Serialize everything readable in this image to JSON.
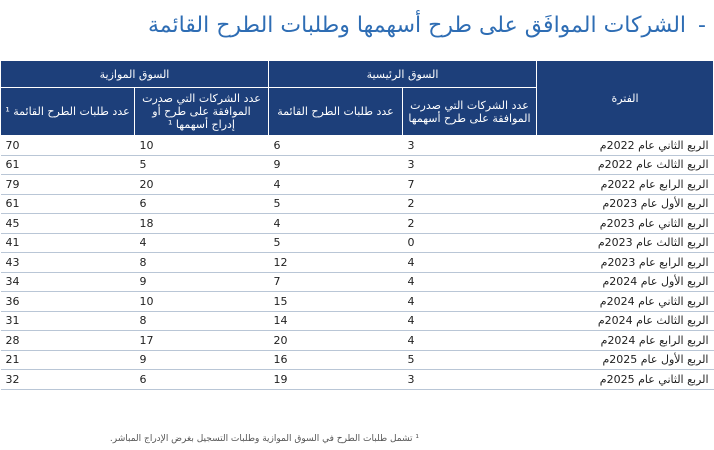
{
  "title": {
    "dash": "-",
    "text": "الشركات الموافَق على طرح أسهمها وطلبات الطرح القائمة"
  },
  "table": {
    "period_header": "الفترة",
    "main_market": {
      "label": "السوق الرئيسية",
      "col_approved": "عدد الشركات التي صدرت الموافقة على طرح أسهمها",
      "col_pending": "عدد طلبات الطرح القائمة"
    },
    "parallel_market": {
      "label": "السوق الموازية",
      "col_approved": "عدد الشركات التي صدرت الموافقة على طرح أو إدراج أسهمها ¹",
      "col_pending": "عدد طلبات الطرح القائمة ¹"
    },
    "rows": [
      {
        "period": "الربع الثاني عام 2022م",
        "main_approved": "3",
        "main_pending": "6",
        "par_approved": "10",
        "par_pending": "70"
      },
      {
        "period": "الربع الثالث عام 2022م",
        "main_approved": "3",
        "main_pending": "9",
        "par_approved": "5",
        "par_pending": "61"
      },
      {
        "period": "الربع الرابع عام 2022م",
        "main_approved": "7",
        "main_pending": "4",
        "par_approved": "20",
        "par_pending": "79"
      },
      {
        "period": "الربع الأول عام 2023م",
        "main_approved": "2",
        "main_pending": "5",
        "par_approved": "6",
        "par_pending": "61"
      },
      {
        "period": "الربع الثاني عام  2023م",
        "main_approved": "2",
        "main_pending": "4",
        "par_approved": "18",
        "par_pending": "45"
      },
      {
        "period": "الربع الثالث عام 2023م",
        "main_approved": "0",
        "main_pending": "5",
        "par_approved": "4",
        "par_pending": "41"
      },
      {
        "period": "الربع الرابع عام 2023م",
        "main_approved": "4",
        "main_pending": "12",
        "par_approved": "8",
        "par_pending": "43"
      },
      {
        "period": "الربع الأول عام 2024م",
        "main_approved": "4",
        "main_pending": "7",
        "par_approved": "9",
        "par_pending": "34"
      },
      {
        "period": "الربع الثاني عام 2024م",
        "main_approved": "4",
        "main_pending": "15",
        "par_approved": "10",
        "par_pending": "36"
      },
      {
        "period": "الربع الثالث عام 2024م",
        "main_approved": "4",
        "main_pending": "14",
        "par_approved": "8",
        "par_pending": "31"
      },
      {
        "period": "الربع الرابع عام 2024م",
        "main_approved": "4",
        "main_pending": "20",
        "par_approved": "17",
        "par_pending": "28"
      },
      {
        "period": "الربع الأول عام 2025م",
        "main_approved": "5",
        "main_pending": "16",
        "par_approved": "9",
        "par_pending": "21"
      },
      {
        "period": "الربع الثاني عام 2025م",
        "main_approved": "3",
        "main_pending": "19",
        "par_approved": "6",
        "par_pending": "32"
      }
    ]
  },
  "footnote": "¹ تشمل طلبات الطرح في السوق الموازية وطلبات التسجيل بغرض الإدراج المباشر."
}
